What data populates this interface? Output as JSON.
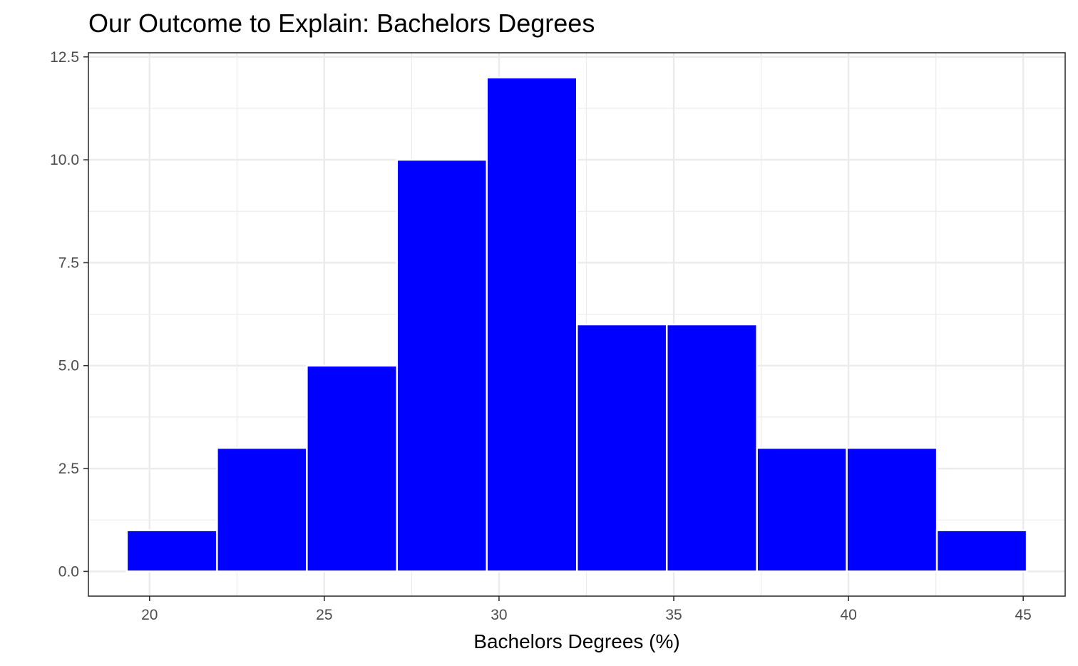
{
  "chart_data": {
    "type": "bar",
    "title": "Our Outcome to Explain: Bachelors Degrees",
    "xlabel": "Bachelors Degrees (%)",
    "ylabel": "",
    "bin_width": 2.575,
    "bins": [
      {
        "x_start": 19.35,
        "x_end": 21.93,
        "count": 1
      },
      {
        "x_start": 21.93,
        "x_end": 24.5,
        "count": 3
      },
      {
        "x_start": 24.5,
        "x_end": 27.08,
        "count": 5
      },
      {
        "x_start": 27.08,
        "x_end": 29.65,
        "count": 10
      },
      {
        "x_start": 29.65,
        "x_end": 32.23,
        "count": 12
      },
      {
        "x_start": 32.23,
        "x_end": 34.8,
        "count": 6
      },
      {
        "x_start": 34.8,
        "x_end": 37.38,
        "count": 6
      },
      {
        "x_start": 37.38,
        "x_end": 39.95,
        "count": 3
      },
      {
        "x_start": 39.95,
        "x_end": 42.53,
        "count": 3
      },
      {
        "x_start": 42.53,
        "x_end": 45.1,
        "count": 1
      }
    ],
    "xlim": [
      18.25,
      46.2
    ],
    "ylim": [
      -0.6,
      12.6
    ],
    "x_ticks": [
      20,
      25,
      30,
      35,
      40,
      45
    ],
    "x_tick_labels": [
      "20",
      "25",
      "30",
      "35",
      "40",
      "45"
    ],
    "y_ticks": [
      0,
      2.5,
      5,
      7.5,
      10,
      12.5
    ],
    "y_tick_labels": [
      "0.0",
      "2.5",
      "5.0",
      "7.5",
      "10.0",
      "12.5"
    ],
    "grid": true,
    "bar_fill": "#0000ff",
    "bar_outline": "#ffffff",
    "grid_color": "#ebebeb",
    "panel_border": "#333333"
  }
}
